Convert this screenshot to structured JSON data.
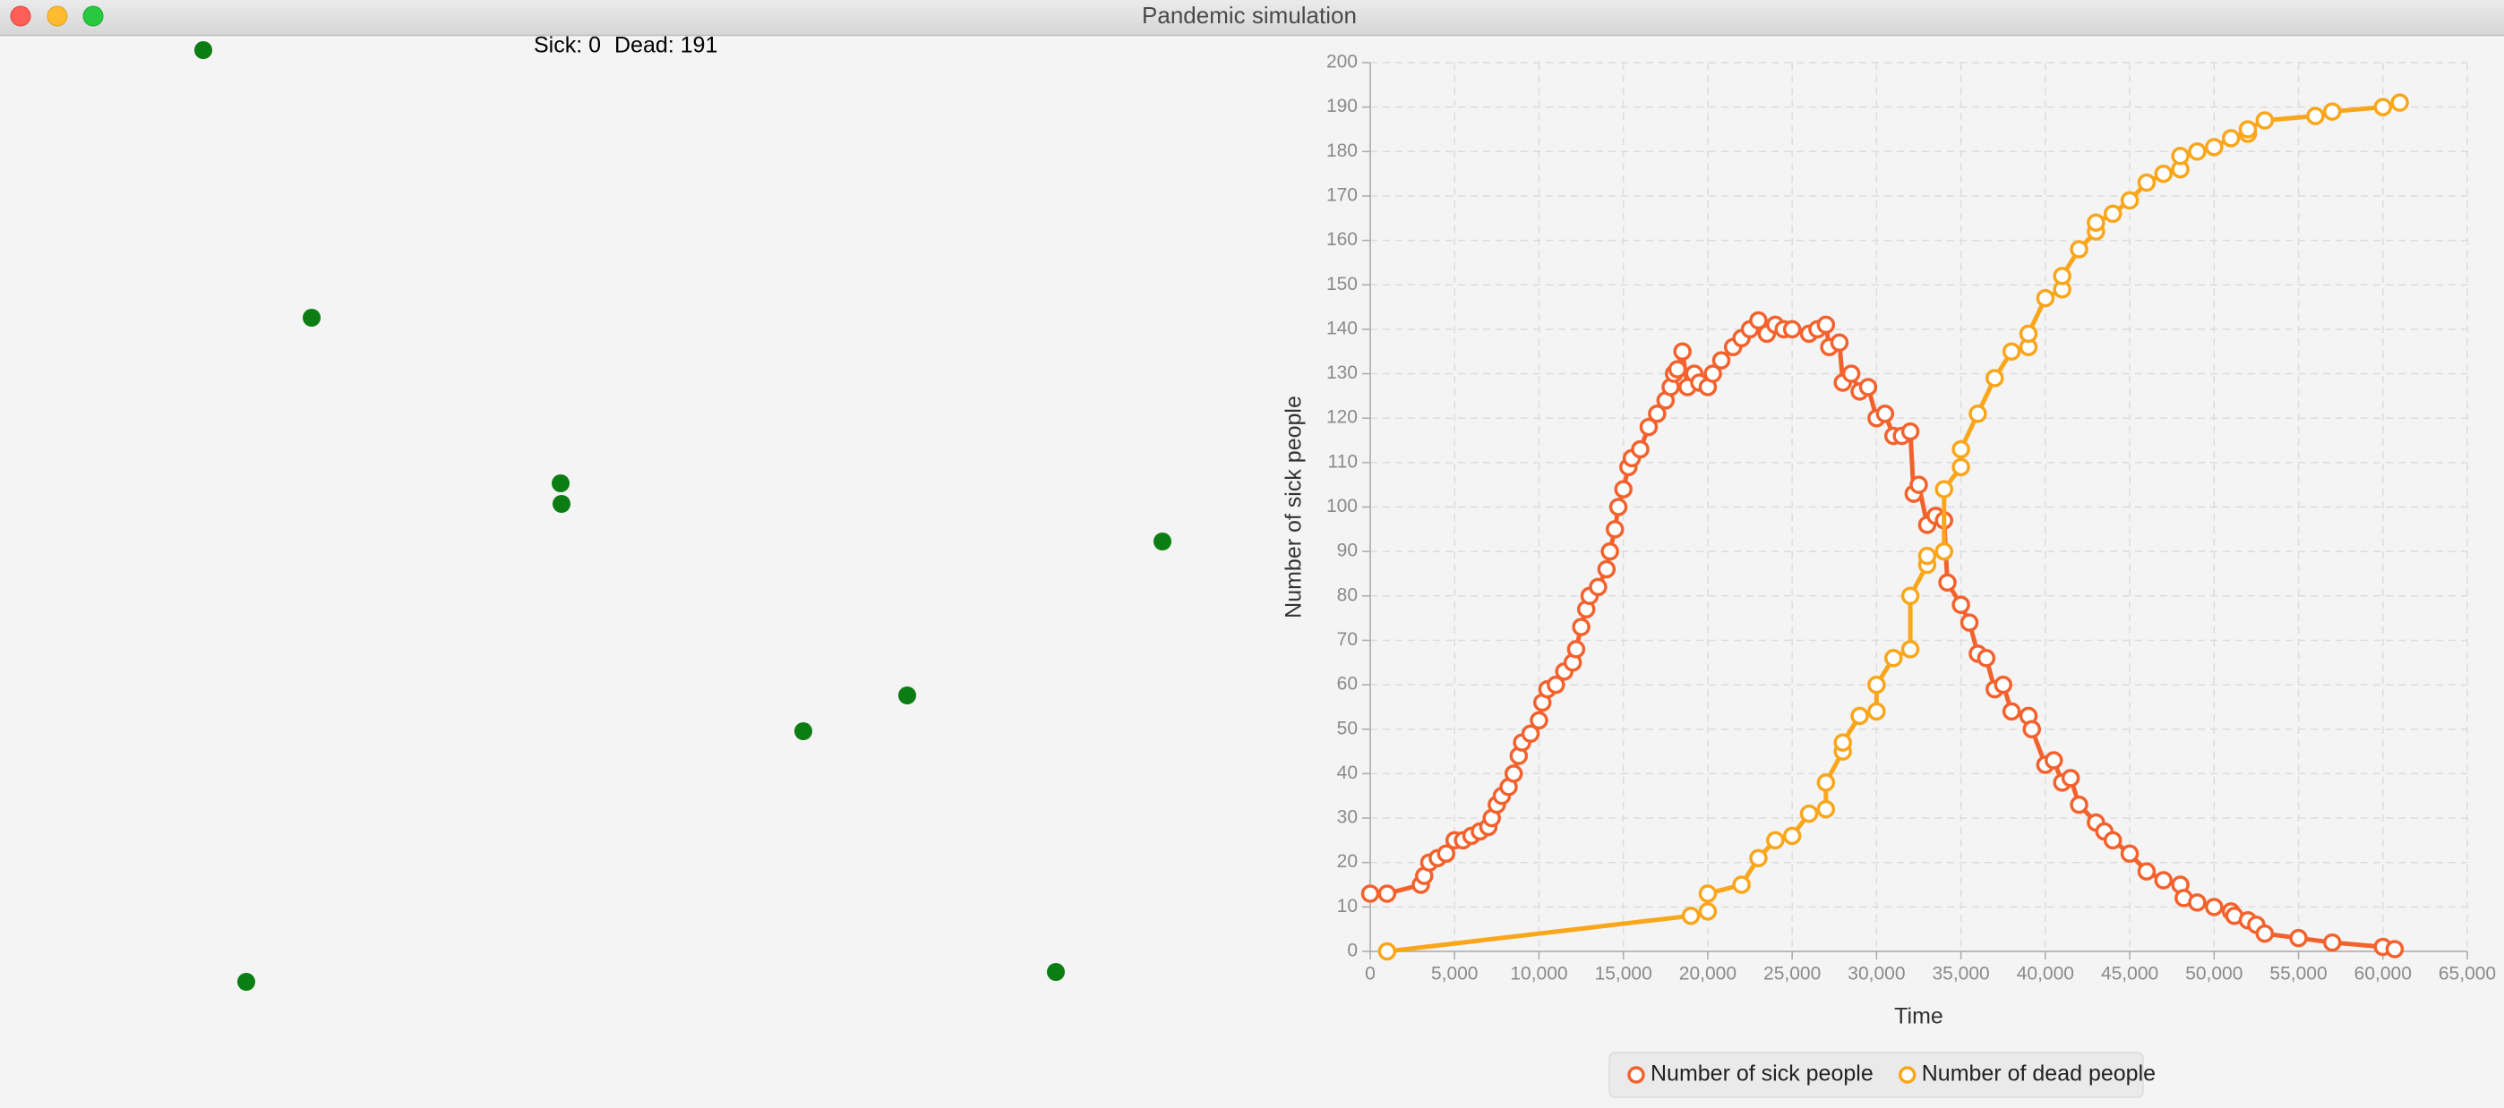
{
  "window": {
    "title": "Pandemic simulation"
  },
  "status": [
    "Sick: 0",
    "Dead: 191"
  ],
  "chart_data": {
    "type": "line",
    "xlabel": "Time",
    "ylabel": "Number of sick people",
    "xlim": [
      0,
      65000
    ],
    "ylim": [
      0,
      200
    ],
    "xticks": [
      0,
      {
        "value": 5000,
        "label": "5,000"
      },
      {
        "value": 10000,
        "label": "10,000"
      },
      {
        "value": 15000,
        "label": "15,000"
      },
      {
        "value": 20000,
        "label": "20,000"
      },
      {
        "value": 25000,
        "label": "25,000"
      },
      {
        "value": 30000,
        "label": "30,000"
      },
      {
        "value": 35000,
        "label": "35,000"
      },
      {
        "value": 40000,
        "label": "40,000"
      },
      {
        "value": 45000,
        "label": "45,000"
      },
      {
        "value": 50000,
        "label": "50,000"
      },
      {
        "value": 55000,
        "label": "55,000"
      },
      {
        "value": 60000,
        "label": "60,000"
      },
      {
        "value": 65000,
        "label": "65,000"
      }
    ],
    "yticks": [
      0,
      10,
      20,
      30,
      40,
      50,
      60,
      70,
      80,
      90,
      100,
      110,
      120,
      130,
      140,
      150,
      160,
      170,
      180,
      190,
      200
    ],
    "grid": true,
    "legend": "bottom",
    "series": [
      {
        "name": "Number of sick people",
        "color": "#f3622d",
        "x": [
          0,
          1000,
          3000,
          3200,
          3500,
          4000,
          4500,
          5000,
          5500,
          6000,
          6500,
          7000,
          7200,
          7500,
          7800,
          8200,
          8500,
          8800,
          9000,
          9500,
          10000,
          10200,
          10500,
          11000,
          11500,
          12000,
          12200,
          12500,
          12800,
          13000,
          13500,
          14000,
          14200,
          14500,
          14700,
          15000,
          15300,
          15500,
          16000,
          16500,
          17000,
          17500,
          17800,
          18000,
          18200,
          18500,
          18800,
          19200,
          19500,
          20000,
          20300,
          20800,
          21500,
          22000,
          22500,
          23000,
          23500,
          24000,
          24500,
          25000,
          26000,
          26500,
          27000,
          27200,
          27800,
          28000,
          28500,
          29000,
          29500,
          30000,
          30500,
          31000,
          31500,
          32000,
          32200,
          32500,
          33000,
          33500,
          34000,
          34200,
          35000,
          35500,
          36000,
          36500,
          37000,
          37500,
          38000,
          39000,
          39200,
          40000,
          40500,
          41000,
          41500,
          42000,
          43000,
          43500,
          44000,
          45000,
          46000,
          47000,
          48000,
          48200,
          49000,
          50000,
          51000,
          51200,
          52000,
          52500,
          53000,
          55000,
          57000,
          60000,
          60700
        ],
        "values": [
          13,
          13,
          15,
          17,
          20,
          21,
          22,
          25,
          25,
          26,
          27,
          28,
          30,
          33,
          35,
          37,
          40,
          44,
          47,
          49,
          52,
          56,
          59,
          60,
          63,
          65,
          68,
          73,
          77,
          80,
          82,
          86,
          90,
          95,
          100,
          104,
          109,
          111,
          113,
          118,
          121,
          124,
          127,
          130,
          131,
          135,
          127,
          130,
          128,
          127,
          130,
          133,
          136,
          138,
          140,
          142,
          139,
          141,
          140,
          140,
          139,
          140,
          141,
          136,
          137,
          128,
          130,
          126,
          127,
          120,
          121,
          116,
          116,
          117,
          103,
          105,
          96,
          98,
          97,
          83,
          78,
          74,
          67,
          66,
          59,
          60,
          54,
          53,
          50,
          42,
          43,
          38,
          39,
          33,
          29,
          27,
          25,
          22,
          18,
          16,
          15,
          12,
          11,
          10,
          9,
          8,
          7,
          6,
          4,
          3,
          2,
          1,
          0.5
        ]
      },
      {
        "name": "Number of dead people",
        "color": "#f9a61b",
        "x": [
          1000,
          19000,
          20000,
          20000,
          22000,
          23000,
          24000,
          25000,
          26000,
          27000,
          27000,
          28000,
          28000,
          29000,
          30000,
          30000,
          31000,
          32000,
          32000,
          33000,
          33000,
          34000,
          34000,
          35000,
          35000,
          36000,
          37000,
          38000,
          39000,
          39000,
          40000,
          41000,
          41000,
          42000,
          43000,
          43000,
          44000,
          45000,
          46000,
          47000,
          48000,
          48000,
          49000,
          50000,
          51000,
          52000,
          52000,
          53000,
          56000,
          57000,
          60000,
          61000
        ],
        "values": [
          0,
          8,
          9,
          13,
          15,
          21,
          25,
          26,
          31,
          32,
          38,
          45,
          47,
          53,
          54,
          60,
          66,
          68,
          80,
          87,
          89,
          90,
          104,
          109,
          113,
          121,
          129,
          135,
          136,
          139,
          147,
          149,
          152,
          158,
          162,
          164,
          166,
          169,
          173,
          175,
          176,
          179,
          180,
          181,
          183,
          184,
          185,
          187,
          188,
          189,
          190,
          191
        ]
      }
    ]
  }
}
